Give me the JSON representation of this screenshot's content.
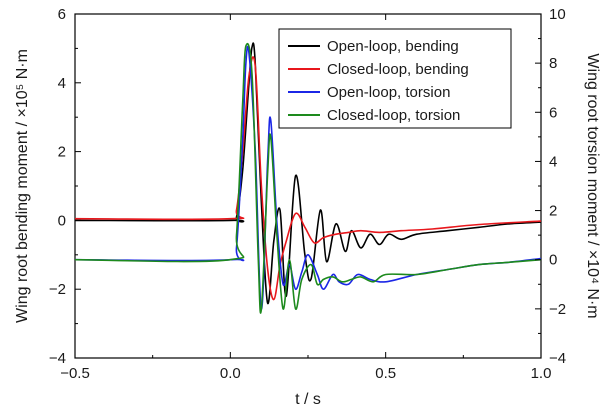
{
  "chart_data": {
    "type": "line",
    "xlabel": "t / s",
    "ylabel_left": "Wing root bending moment / ×10⁵ N·m",
    "ylabel_right": "Wing root torsion moment / ×10⁴ N·m",
    "xlim": [
      -0.5,
      1.0
    ],
    "ylim_left": [
      -4,
      6
    ],
    "ylim_right": [
      -4,
      10
    ],
    "xticks": [
      -0.5,
      0.0,
      0.5,
      1.0
    ],
    "xtick_labels": [
      "−0.5",
      "0.0",
      "0.5",
      "1.0"
    ],
    "yticks_left": [
      -4,
      -2,
      0,
      2,
      4,
      6
    ],
    "ytick_labels_left": [
      "−4",
      "−2",
      "0",
      "2",
      "4",
      "6"
    ],
    "yticks_right": [
      -4,
      -2,
      0,
      2,
      4,
      6,
      8,
      10
    ],
    "ytick_labels_right": [
      "−4",
      "−2",
      "0",
      "2",
      "4",
      "6",
      "8",
      "10"
    ],
    "grid": false,
    "legend_position": "top-right",
    "series": [
      {
        "name": "Open-loop, bending",
        "color": "#000000",
        "axis": "left",
        "x": [
          -0.5,
          0.0,
          0.02,
          0.04,
          0.06,
          0.07,
          0.08,
          0.1,
          0.12,
          0.14,
          0.16,
          0.18,
          0.21,
          0.24,
          0.26,
          0.29,
          0.31,
          0.34,
          0.37,
          0.39,
          0.42,
          0.45,
          0.48,
          0.51,
          0.55,
          0.6,
          0.7,
          0.8,
          0.9,
          1.0
        ],
        "y": [
          0.0,
          0.0,
          0.1,
          1.5,
          4.0,
          5.05,
          4.6,
          0.5,
          -2.4,
          -0.6,
          0.3,
          -2.2,
          1.3,
          -1.0,
          -1.7,
          0.3,
          -1.2,
          -0.1,
          -0.9,
          -0.3,
          -0.8,
          -0.4,
          -0.7,
          -0.4,
          -0.55,
          -0.4,
          -0.3,
          -0.2,
          -0.1,
          -0.05
        ]
      },
      {
        "name": "Closed-loop, bending",
        "color": "#e8171c",
        "axis": "left",
        "x": [
          -0.5,
          0.0,
          0.02,
          0.04,
          0.06,
          0.08,
          0.1,
          0.12,
          0.14,
          0.16,
          0.18,
          0.21,
          0.24,
          0.27,
          0.3,
          0.34,
          0.38,
          0.42,
          0.48,
          0.55,
          0.65,
          0.8,
          1.0
        ],
        "y": [
          0.05,
          0.05,
          0.3,
          2.0,
          4.2,
          4.5,
          1.0,
          -1.4,
          -2.3,
          -1.3,
          -0.6,
          0.2,
          -0.2,
          -0.65,
          -0.5,
          -0.4,
          -0.35,
          -0.3,
          -0.35,
          -0.3,
          -0.25,
          -0.12,
          -0.02
        ]
      },
      {
        "name": "Open-loop, torsion",
        "color": "#1b26e6",
        "axis": "right",
        "x": [
          -0.5,
          0.0,
          0.02,
          0.04,
          0.05,
          0.06,
          0.08,
          0.1,
          0.12,
          0.13,
          0.15,
          0.17,
          0.19,
          0.21,
          0.23,
          0.25,
          0.28,
          0.3,
          0.33,
          0.35,
          0.38,
          0.41,
          0.45,
          0.5,
          0.6,
          0.7,
          0.8,
          0.9,
          1.0
        ],
        "y": [
          0.0,
          0.0,
          0.5,
          5.0,
          8.0,
          8.4,
          4.5,
          -2.0,
          4.0,
          5.7,
          1.5,
          -1.0,
          -0.2,
          -1.2,
          -0.5,
          0.2,
          -0.6,
          -1.2,
          -0.6,
          -0.9,
          -1.0,
          -0.6,
          -0.8,
          -0.9,
          -0.6,
          -0.4,
          -0.2,
          -0.1,
          0.05
        ]
      },
      {
        "name": "Closed-loop, torsion",
        "color": "#1d8a1d",
        "axis": "right",
        "x": [
          -0.5,
          0.0,
          0.02,
          0.04,
          0.05,
          0.07,
          0.09,
          0.1,
          0.12,
          0.13,
          0.15,
          0.17,
          0.19,
          0.21,
          0.23,
          0.26,
          0.28,
          0.3,
          0.33,
          0.36,
          0.39,
          0.42,
          0.46,
          0.5,
          0.6,
          0.7,
          0.8,
          0.9,
          1.0
        ],
        "y": [
          0.0,
          0.0,
          1.0,
          6.5,
          8.7,
          7.5,
          0.0,
          -2.0,
          3.5,
          5.0,
          1.0,
          -2.0,
          0.0,
          -2.0,
          -0.8,
          -0.2,
          -1.0,
          -0.8,
          -0.7,
          -0.9,
          -0.8,
          -0.7,
          -0.9,
          -0.6,
          -0.6,
          -0.4,
          -0.2,
          -0.1,
          0.0
        ]
      }
    ]
  }
}
